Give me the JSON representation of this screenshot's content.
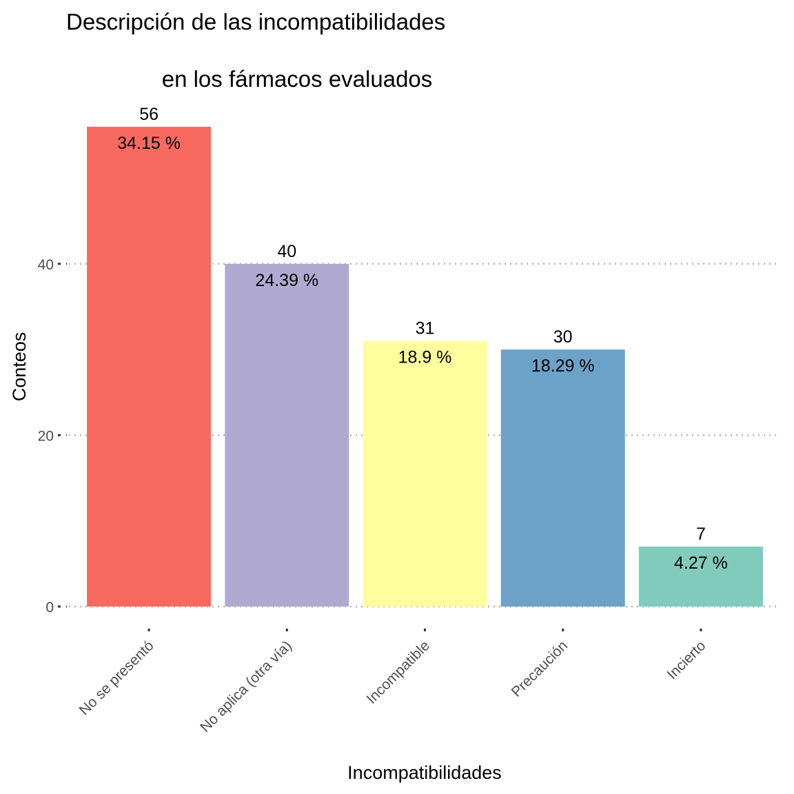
{
  "chart_data": {
    "type": "bar",
    "title": "Descripción de las incompatibilidades",
    "subtitle": "en los fármacos evaluados",
    "xlabel": "Incompatibilidades",
    "ylabel": "Conteos",
    "categories": [
      "No se presentó",
      "No aplica (otra vía)",
      "Incompatible",
      "Precaución",
      "Incierto"
    ],
    "values": [
      56,
      40,
      31,
      30,
      7
    ],
    "percent_labels": [
      "34.15 %",
      "24.39 %",
      "18.9 %",
      "18.29 %",
      "4.27 %"
    ],
    "colors": [
      "#f8695f",
      "#b0aad0",
      "#fffe9e",
      "#6ca2c8",
      "#80cbbb"
    ],
    "y_ticks": [
      0,
      20,
      40
    ],
    "ylim": [
      0,
      56
    ],
    "grid": true,
    "legend": "none"
  }
}
